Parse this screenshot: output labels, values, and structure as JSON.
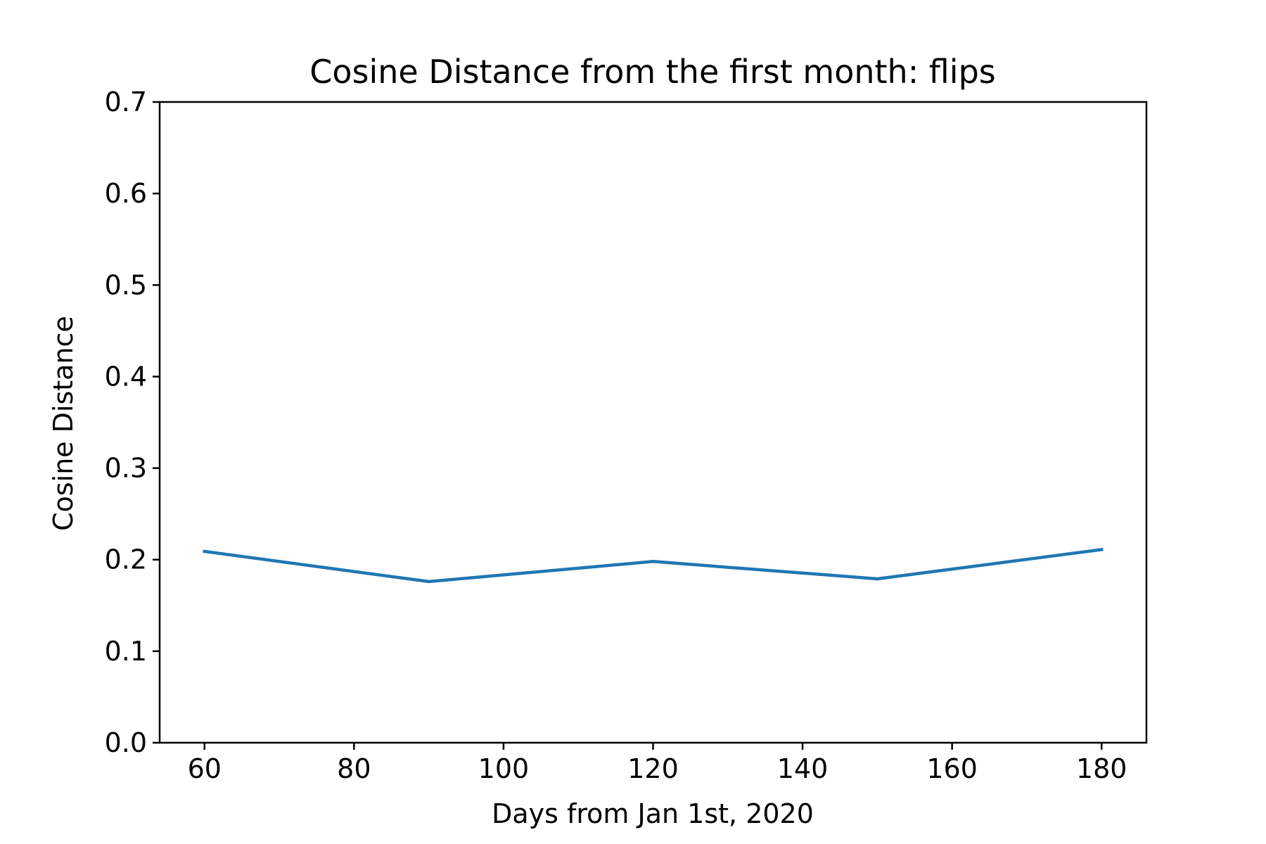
{
  "chart_data": {
    "type": "line",
    "title": "Cosine Distance from the first month: flips",
    "xlabel": "Days from Jan 1st, 2020",
    "ylabel": "Cosine Distance",
    "xlim": [
      54,
      186
    ],
    "ylim": [
      0.0,
      0.7
    ],
    "xticks": [
      60,
      80,
      100,
      120,
      140,
      160,
      180
    ],
    "yticks": [
      0.0,
      0.1,
      0.2,
      0.3,
      0.4,
      0.5,
      0.6,
      0.7
    ],
    "xtick_labels": [
      "60",
      "80",
      "100",
      "120",
      "140",
      "160",
      "180"
    ],
    "ytick_labels": [
      "0.0",
      "0.1",
      "0.2",
      "0.3",
      "0.4",
      "0.5",
      "0.6",
      "0.7"
    ],
    "grid": false,
    "legend": "none",
    "x": [
      60,
      90,
      120,
      150,
      180
    ],
    "series": [
      {
        "values": [
          0.209,
          0.176,
          0.198,
          0.179,
          0.211
        ],
        "color": "#1f77b4"
      }
    ]
  }
}
